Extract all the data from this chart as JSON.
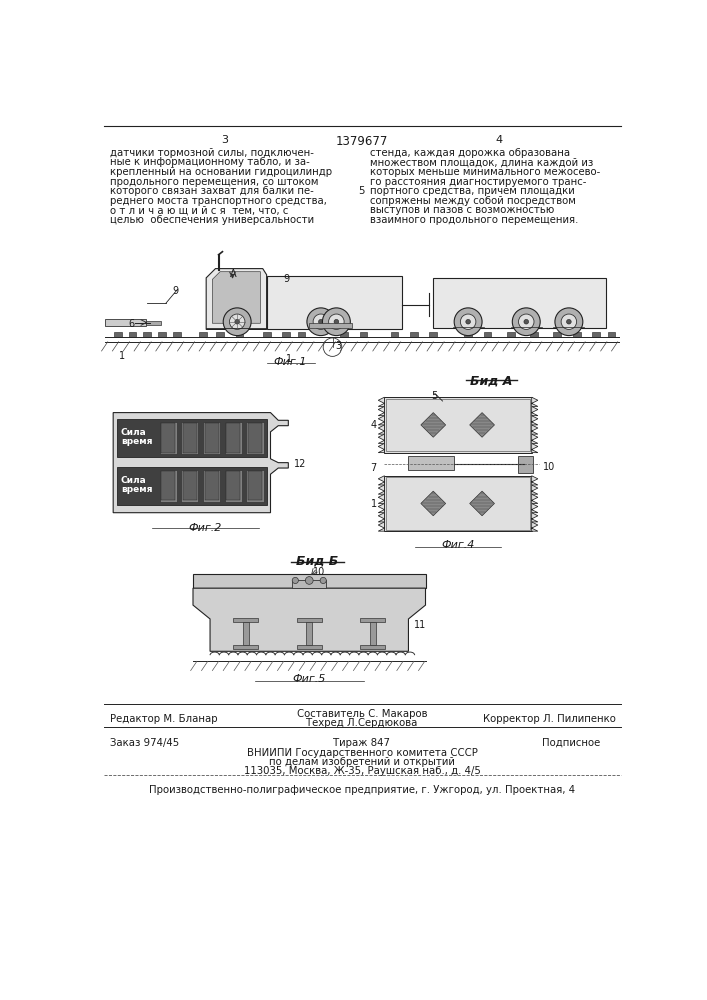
{
  "page_bg": "#ffffff",
  "text_color": "#1a1a1a",
  "header_num_left": "3",
  "header_title": "1379677",
  "header_num_right": "4",
  "col_left_text": [
    "датчики тормозной силы, подключен-",
    "ные к информационному табло, и за-",
    "крепленный на основании гидроцилиндр",
    "продольного перемещения, со штоком",
    "которого связан захват для балки пе-",
    "реднего моста транспортного средства,",
    "о т л и ч а ю щ и й с я  тем, что, с",
    "целью  обеспечения универсальности"
  ],
  "line_number_5": "5",
  "col_right_text": [
    "стенда, каждая дорожка образована",
    "множеством площадок, длина каждой из",
    "которых меньше минимального межосево-",
    "го расстояния диагностируемого транс-",
    "портного средства, причем площадки",
    "сопряжены между собой посредством",
    "выступов и пазов с возможностью",
    "взаимного продольного перемещения."
  ],
  "fig1_label": "Фиг.1",
  "fig2_label": "Фиг.2",
  "fig4_label": "Фиг.4",
  "fig5_label": "Фиг.5",
  "vid_a_label": "Бид А",
  "vid_b_label": "Бид Б",
  "footer_editor": "Редактор М. Бланар",
  "footer_compiler": "Составитель С. Макаров",
  "footer_techred": "Техред Л.Сердюкова",
  "footer_corrector": "Корректор Л. Пилипенко",
  "footer_order": "Заказ 974/45",
  "footer_tirazh": "Тираж 847",
  "footer_podpisnoe": "Подписное",
  "footer_vniiipi": "ВНИИПИ Государственного комитета СССР",
  "footer_po_delam": "по делам изобретений и открытий",
  "footer_address": "113035, Москва, Ж-35, Раушская наб., д. 4/5",
  "footer_factory": "Производственно-полиграфическое предприятие, г. Ужгород, ул. Проектная, 4"
}
